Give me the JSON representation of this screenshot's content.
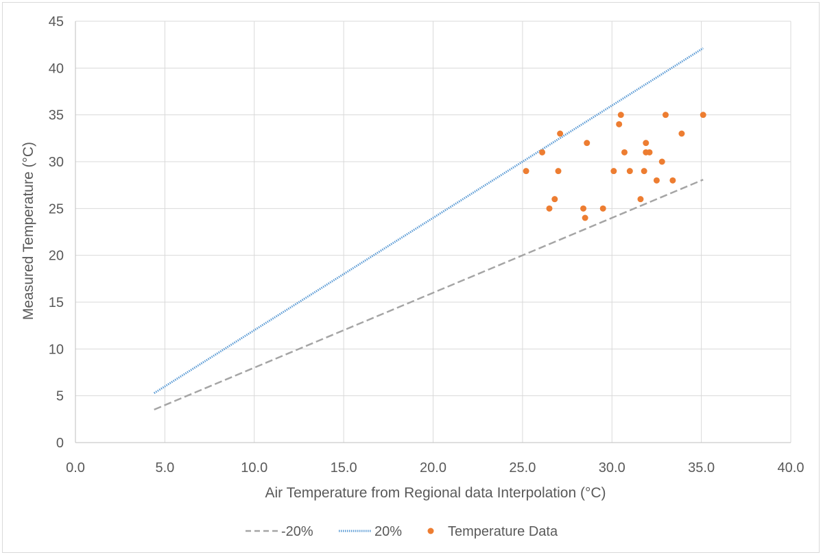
{
  "chart_data": {
    "type": "scatter",
    "title": "",
    "xlabel": "Air Temperature from Regional data Interpolation (°C)",
    "ylabel": "Measured Temperature (°C)",
    "xlim": [
      0,
      40
    ],
    "ylim": [
      0,
      45
    ],
    "x_ticks": [
      "0.0",
      "5.0",
      "10.0",
      "15.0",
      "20.0",
      "25.0",
      "30.0",
      "35.0",
      "40.0"
    ],
    "y_ticks": [
      "0",
      "5",
      "10",
      "15",
      "20",
      "25",
      "30",
      "35",
      "40",
      "45"
    ],
    "grid": true,
    "legend_position": "bottom",
    "series": [
      {
        "name": "-20%",
        "kind": "line",
        "style": "dashed",
        "color": "#a5a5a5",
        "points": [
          [
            4.4,
            3.52
          ],
          [
            35.1,
            28.08
          ]
        ]
      },
      {
        "name": "20%",
        "kind": "line",
        "style": "dotted",
        "color": "#5b9bd5",
        "points": [
          [
            4.4,
            5.28
          ],
          [
            35.1,
            42.12
          ]
        ]
      },
      {
        "name": "Temperature Data",
        "kind": "scatter",
        "color": "#ed7d31",
        "points": [
          [
            25.2,
            29
          ],
          [
            26.1,
            31
          ],
          [
            26.5,
            25
          ],
          [
            26.8,
            26
          ],
          [
            27.0,
            29
          ],
          [
            27.1,
            33
          ],
          [
            28.4,
            25
          ],
          [
            28.5,
            24
          ],
          [
            28.6,
            32
          ],
          [
            29.5,
            25
          ],
          [
            30.1,
            29
          ],
          [
            30.4,
            34
          ],
          [
            30.5,
            35
          ],
          [
            30.7,
            31
          ],
          [
            31.0,
            29
          ],
          [
            31.6,
            26
          ],
          [
            31.8,
            29
          ],
          [
            31.9,
            31
          ],
          [
            31.9,
            32
          ],
          [
            32.1,
            31
          ],
          [
            32.5,
            28
          ],
          [
            32.8,
            30
          ],
          [
            33.0,
            35
          ],
          [
            33.4,
            28
          ],
          [
            33.9,
            33
          ],
          [
            35.1,
            35
          ]
        ]
      }
    ]
  }
}
